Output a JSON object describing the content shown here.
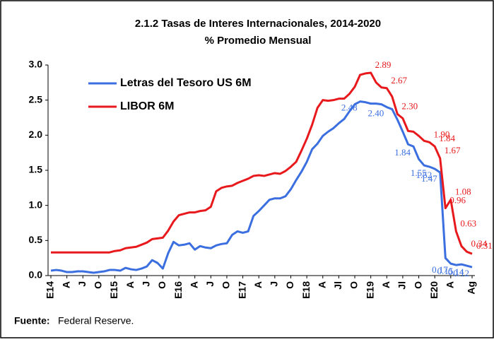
{
  "chart_data": {
    "type": "line",
    "title": "2.1.2 Tasas de Interes Internacionales, 2014-2020",
    "subtitle": "% Promedio Mensual",
    "source_label": "Fuente:",
    "source": "Federal Reserve.",
    "legend": "upper left",
    "categories": [
      "E14",
      null,
      null,
      "A",
      null,
      null,
      "J",
      null,
      null,
      "O",
      null,
      null,
      "E15",
      null,
      null,
      "A",
      null,
      null,
      "J",
      null,
      null,
      "O",
      null,
      null,
      "E16",
      null,
      null,
      "A",
      null,
      null,
      "J",
      null,
      null,
      "O",
      null,
      null,
      "E17",
      null,
      null,
      "A",
      null,
      null,
      "J",
      null,
      null,
      "O",
      null,
      null,
      "E18",
      null,
      null,
      "A",
      null,
      null,
      "Jl",
      null,
      null,
      "O",
      null,
      null,
      "E19",
      null,
      null,
      "A",
      null,
      null,
      "Jl",
      null,
      null,
      "O",
      null,
      null,
      "E20",
      null,
      null,
      "A",
      null,
      null,
      null,
      "Ag"
    ],
    "ylim": [
      0,
      3
    ],
    "yticks": [
      {
        "value": 0,
        "label": "0.0"
      },
      {
        "value": 0.5,
        "label": "0.5"
      },
      {
        "value": 1,
        "label": "1.0"
      },
      {
        "value": 1.5,
        "label": "1.5"
      },
      {
        "value": 2,
        "label": "2.0"
      },
      {
        "value": 2.5,
        "label": "2.5"
      },
      {
        "value": 3,
        "label": "3.0"
      }
    ],
    "series": [
      {
        "name": "Letras del Tesoro US 6M",
        "color": "#3b6fe0",
        "values": [
          0.07,
          0.08,
          0.07,
          0.05,
          0.05,
          0.06,
          0.06,
          0.05,
          0.04,
          0.05,
          0.06,
          0.08,
          0.08,
          0.07,
          0.11,
          0.09,
          0.08,
          0.1,
          0.13,
          0.22,
          0.18,
          0.1,
          0.32,
          0.48,
          0.43,
          0.44,
          0.46,
          0.37,
          0.42,
          0.4,
          0.39,
          0.43,
          0.45,
          0.46,
          0.58,
          0.63,
          0.61,
          0.63,
          0.85,
          0.92,
          1.0,
          1.08,
          1.1,
          1.1,
          1.13,
          1.23,
          1.36,
          1.48,
          1.62,
          1.8,
          1.88,
          1.99,
          2.05,
          2.1,
          2.17,
          2.23,
          2.34,
          2.44,
          2.48,
          2.47,
          2.45,
          2.45,
          2.44,
          2.4,
          2.37,
          2.22,
          2.05,
          1.87,
          1.84,
          1.66,
          1.57,
          1.55,
          1.52,
          1.47,
          0.25,
          0.17,
          0.15,
          0.16,
          0.14,
          0.12
        ],
        "value_labels": [
          null,
          null,
          null,
          null,
          null,
          null,
          null,
          null,
          null,
          null,
          null,
          null,
          null,
          null,
          null,
          null,
          null,
          null,
          null,
          null,
          null,
          null,
          null,
          null,
          null,
          null,
          null,
          null,
          null,
          null,
          null,
          null,
          null,
          null,
          null,
          null,
          null,
          null,
          null,
          null,
          null,
          null,
          null,
          null,
          null,
          null,
          null,
          null,
          null,
          null,
          null,
          null,
          null,
          null,
          null,
          null,
          null,
          null,
          "2.48",
          null,
          null,
          null,
          null,
          "2.40",
          null,
          null,
          null,
          null,
          "1.84",
          null,
          null,
          "1.55",
          "1.52",
          "1.47",
          null,
          "0.17",
          "0.15",
          null,
          "0.14",
          "0.12"
        ]
      },
      {
        "name": "LIBOR 6M",
        "color": "#e8191c",
        "values": [
          0.33,
          0.33,
          0.33,
          0.33,
          0.33,
          0.33,
          0.33,
          0.33,
          0.33,
          0.33,
          0.33,
          0.33,
          0.35,
          0.36,
          0.39,
          0.4,
          0.41,
          0.44,
          0.47,
          0.52,
          0.53,
          0.54,
          0.64,
          0.77,
          0.86,
          0.88,
          0.9,
          0.9,
          0.92,
          0.93,
          0.98,
          1.2,
          1.25,
          1.27,
          1.28,
          1.32,
          1.35,
          1.38,
          1.42,
          1.43,
          1.42,
          1.44,
          1.46,
          1.45,
          1.49,
          1.55,
          1.62,
          1.78,
          1.95,
          2.15,
          2.39,
          2.5,
          2.49,
          2.5,
          2.52,
          2.52,
          2.59,
          2.69,
          2.86,
          2.88,
          2.89,
          2.75,
          2.68,
          2.67,
          2.55,
          2.3,
          2.24,
          2.06,
          2.05,
          1.99,
          1.92,
          1.9,
          1.84,
          1.67,
          0.96,
          1.08,
          0.63,
          0.42,
          0.34,
          0.31
        ],
        "value_labels": [
          null,
          null,
          null,
          null,
          null,
          null,
          null,
          null,
          null,
          null,
          null,
          null,
          null,
          null,
          null,
          null,
          null,
          null,
          null,
          null,
          null,
          null,
          null,
          null,
          null,
          null,
          null,
          null,
          null,
          null,
          null,
          null,
          null,
          null,
          null,
          null,
          null,
          null,
          null,
          null,
          null,
          null,
          null,
          null,
          null,
          null,
          null,
          null,
          null,
          null,
          null,
          null,
          null,
          null,
          null,
          null,
          null,
          null,
          null,
          null,
          "2.89",
          null,
          null,
          "2.67",
          null,
          "2.30",
          null,
          null,
          null,
          null,
          null,
          "1.90",
          "1.84",
          "1.67",
          "0.96",
          "1.08",
          "0.63",
          null,
          "0.34",
          "0.31"
        ]
      }
    ]
  }
}
